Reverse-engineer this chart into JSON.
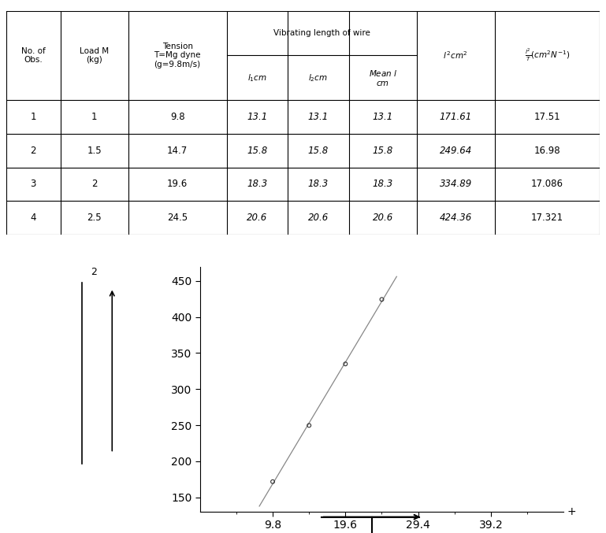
{
  "table": {
    "col_widths": [
      0.08,
      0.1,
      0.145,
      0.09,
      0.09,
      0.1,
      0.115,
      0.155
    ],
    "rows": [
      [
        "1",
        "1",
        "9.8",
        "13.1",
        "13.1",
        "13.1",
        "171.61",
        "17.51"
      ],
      [
        "2",
        "1.5",
        "14.7",
        "15.8",
        "15.8",
        "15.8",
        "249.64",
        "16.98"
      ],
      [
        "3",
        "2",
        "19.6",
        "18.3",
        "18.3",
        "18.3",
        "334.89",
        "17.086"
      ],
      [
        "4",
        "2.5",
        "24.5",
        "20.6",
        "20.6",
        "20.6",
        "424.36",
        "17.321"
      ]
    ]
  },
  "graph": {
    "x_data": [
      9.8,
      14.7,
      19.6,
      24.5
    ],
    "y_data": [
      171.61,
      249.64,
      334.89,
      424.36
    ],
    "x_ticks": [
      9.8,
      19.6,
      29.4,
      39.2
    ],
    "x_minor_ticks": [
      4.9,
      14.7,
      24.5,
      34.3,
      44.1
    ],
    "y_ticks": [
      150,
      200,
      250,
      300,
      350,
      400,
      450
    ],
    "line_color": "#888888",
    "point_color": "#333333",
    "marker_size": 12,
    "line_width": 0.9,
    "x_min": 0,
    "x_max": 49,
    "y_min": 130,
    "y_max": 470
  }
}
